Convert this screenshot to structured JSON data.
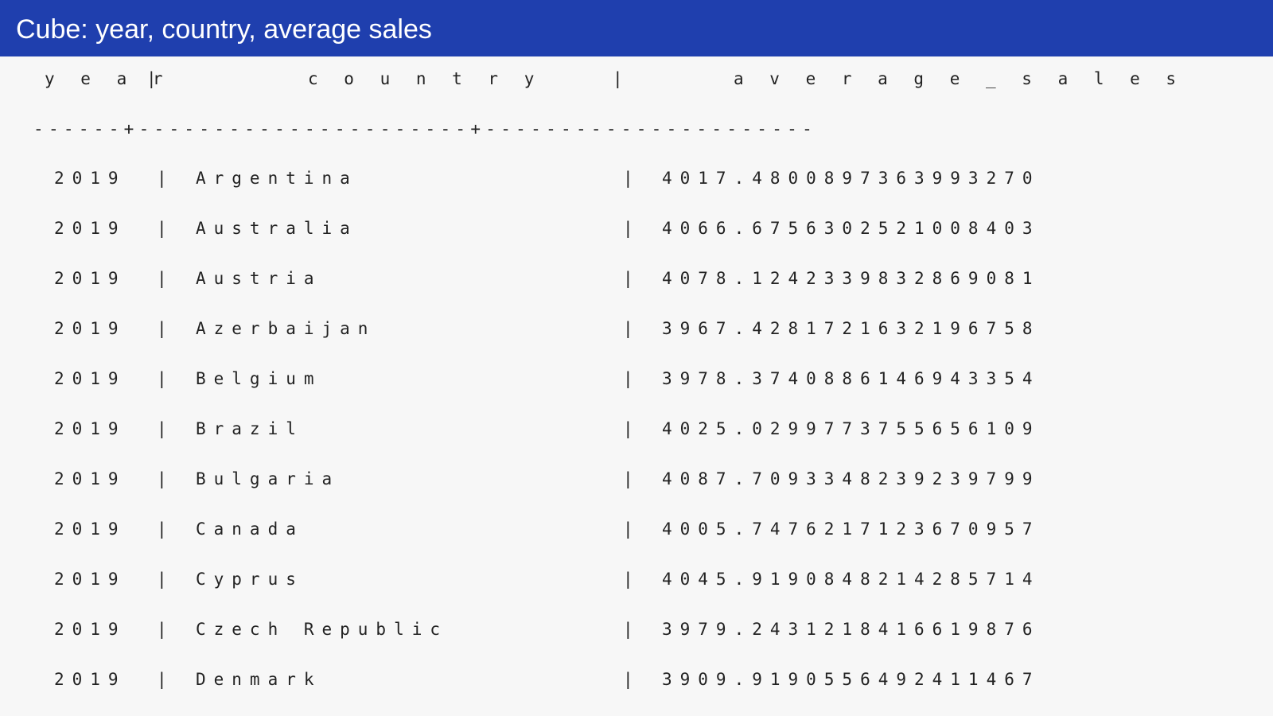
{
  "title": "Cube: year, country, average sales",
  "header": {
    "year": "y e a r",
    "country": "c o u n t r y",
    "average_sales": "a v e r a g e _ s a l e s",
    "separator": "|"
  },
  "rule": "------+----------------------+----------------------",
  "separator": "|",
  "rows": [
    {
      "year": "2019",
      "country": "Argentina",
      "average_sales": "4017.4800897363993270"
    },
    {
      "year": "2019",
      "country": "Australia",
      "average_sales": "4066.6756302521008403"
    },
    {
      "year": "2019",
      "country": "Austria",
      "average_sales": "4078.1242339832869081"
    },
    {
      "year": "2019",
      "country": "Azerbaijan",
      "average_sales": "3967.4281721632196758"
    },
    {
      "year": "2019",
      "country": "Belgium",
      "average_sales": "3978.3740886146943354"
    },
    {
      "year": "2019",
      "country": "Brazil",
      "average_sales": "4025.0299773755656109"
    },
    {
      "year": "2019",
      "country": "Bulgaria",
      "average_sales": "4087.7093348239239799"
    },
    {
      "year": "2019",
      "country": "Canada",
      "average_sales": "4005.7476217123670957"
    },
    {
      "year": "2019",
      "country": "Cyprus",
      "average_sales": "4045.9190848214285714"
    },
    {
      "year": "2019",
      "country": "Czech Republic",
      "average_sales": "3979.2431218416619876"
    },
    {
      "year": "2019",
      "country": "Denmark",
      "average_sales": "3909.9190556492411467"
    }
  ]
}
